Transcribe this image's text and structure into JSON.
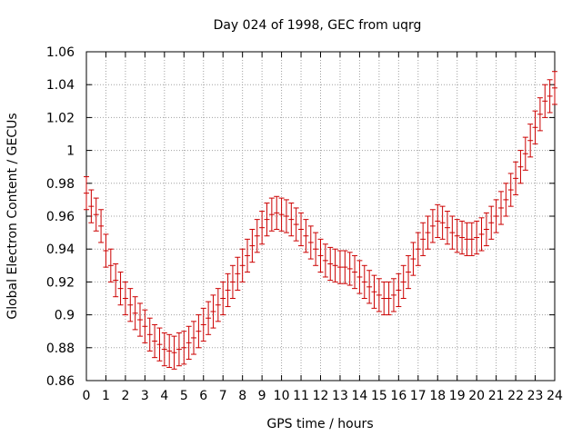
{
  "chart_data": {
    "type": "scatter",
    "title": "Day 024 of 1998, GEC from uqrg",
    "xlabel": "GPS time / hours",
    "ylabel": "Global Electron Content / GECUs",
    "xlim": [
      0,
      24
    ],
    "ylim": [
      0.86,
      1.06
    ],
    "grid": true,
    "xticks": [
      0,
      1,
      2,
      3,
      4,
      5,
      6,
      7,
      8,
      9,
      10,
      11,
      12,
      13,
      14,
      15,
      16,
      17,
      18,
      19,
      20,
      21,
      22,
      23,
      24
    ],
    "xtick_labels": [
      "0",
      "1",
      "2",
      "3",
      "4",
      "5",
      "6",
      "7",
      "8",
      "9",
      "10",
      "11",
      "12",
      "13",
      "14",
      "15",
      "16",
      "17",
      "18",
      "19",
      "20",
      "21",
      "22",
      "23",
      "24"
    ],
    "yticks": [
      0.86,
      0.88,
      0.9,
      0.92,
      0.94,
      0.96,
      0.98,
      1.0,
      1.02,
      1.04,
      1.06
    ],
    "ytick_labels": [
      "0.86",
      "0.88",
      "0.9",
      "0.92",
      "0.94",
      "0.96",
      "0.98",
      "1",
      "1.02",
      "1.04",
      "1.06"
    ],
    "series": [
      {
        "name": "GEC",
        "color": "#cc0000",
        "error": 0.01,
        "x": [
          0,
          0.25,
          0.5,
          0.75,
          1,
          1.25,
          1.5,
          1.75,
          2,
          2.25,
          2.5,
          2.75,
          3,
          3.25,
          3.5,
          3.75,
          4,
          4.25,
          4.5,
          4.75,
          5,
          5.25,
          5.5,
          5.75,
          6,
          6.25,
          6.5,
          6.75,
          7,
          7.25,
          7.5,
          7.75,
          8,
          8.25,
          8.5,
          8.75,
          9,
          9.25,
          9.5,
          9.75,
          10,
          10.25,
          10.5,
          10.75,
          11,
          11.25,
          11.5,
          11.75,
          12,
          12.25,
          12.5,
          12.75,
          13,
          13.25,
          13.5,
          13.75,
          14,
          14.25,
          14.5,
          14.75,
          15,
          15.25,
          15.5,
          15.75,
          16,
          16.25,
          16.5,
          16.75,
          17,
          17.25,
          17.5,
          17.75,
          18,
          18.25,
          18.5,
          18.75,
          19,
          19.25,
          19.5,
          19.75,
          20,
          20.25,
          20.5,
          20.75,
          21,
          21.25,
          21.5,
          21.75,
          22,
          22.25,
          22.5,
          22.75,
          23,
          23.25,
          23.5,
          23.75,
          24
        ],
        "y": [
          0.974,
          0.966,
          0.961,
          0.954,
          0.939,
          0.93,
          0.921,
          0.916,
          0.91,
          0.906,
          0.901,
          0.897,
          0.893,
          0.888,
          0.884,
          0.882,
          0.879,
          0.878,
          0.877,
          0.879,
          0.88,
          0.883,
          0.886,
          0.89,
          0.894,
          0.898,
          0.902,
          0.906,
          0.91,
          0.915,
          0.92,
          0.925,
          0.93,
          0.936,
          0.942,
          0.948,
          0.953,
          0.958,
          0.961,
          0.962,
          0.961,
          0.96,
          0.958,
          0.955,
          0.952,
          0.948,
          0.944,
          0.94,
          0.936,
          0.933,
          0.931,
          0.93,
          0.929,
          0.929,
          0.928,
          0.926,
          0.923,
          0.92,
          0.917,
          0.914,
          0.912,
          0.91,
          0.91,
          0.912,
          0.915,
          0.92,
          0.926,
          0.934,
          0.94,
          0.946,
          0.95,
          0.954,
          0.957,
          0.956,
          0.953,
          0.95,
          0.948,
          0.947,
          0.946,
          0.946,
          0.947,
          0.949,
          0.952,
          0.956,
          0.96,
          0.965,
          0.97,
          0.976,
          0.983,
          0.99,
          0.998,
          1.006,
          1.014,
          1.022,
          1.03,
          1.033,
          1.038
        ]
      }
    ]
  }
}
